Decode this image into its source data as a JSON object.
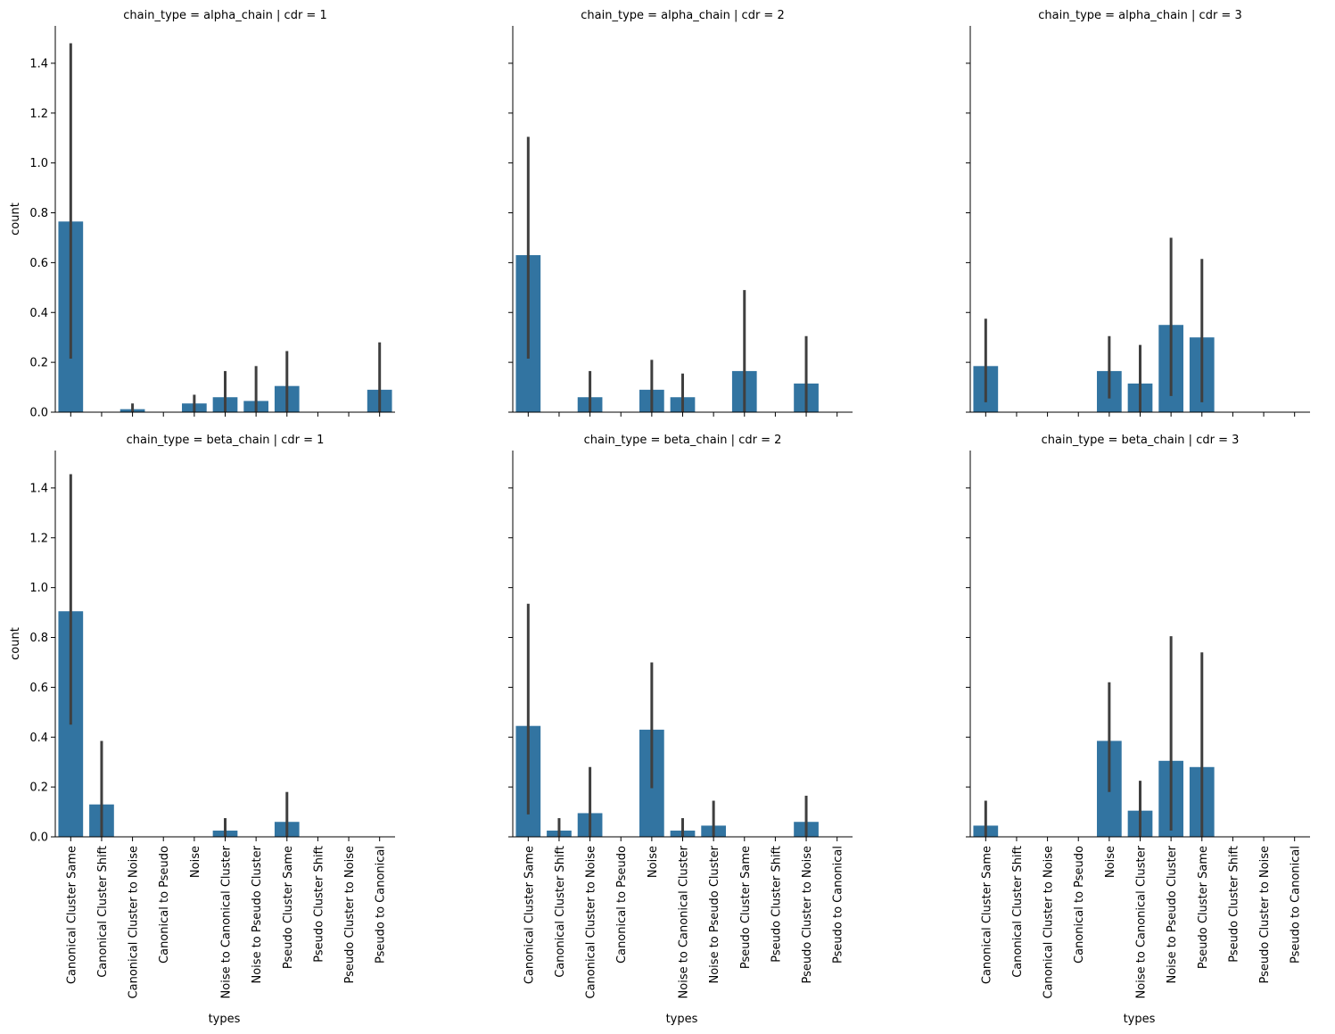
{
  "chart_data": {
    "type": "bar",
    "layout": "facet-grid",
    "xlabel": "types",
    "ylabel": "count",
    "ylim": [
      0,
      1.55
    ],
    "yticks": [
      "0.0",
      "0.2",
      "0.4",
      "0.6",
      "0.8",
      "1.0",
      "1.2",
      "1.4"
    ],
    "categories": [
      "Canonical Cluster Same",
      "Canonical Cluster Shift",
      "Canonical Cluster to Noise",
      "Canonical to Pseudo",
      "Noise",
      "Noise to Canonical Cluster",
      "Noise to Pseudo Cluster",
      "Pseudo Cluster Same",
      "Pseudo Cluster Shift",
      "Pseudo Cluster to Noise",
      "Pseudo to Canonical"
    ],
    "panels": [
      {
        "title": "chain_type = alpha_chain | cdr = 1",
        "values": [
          0.765,
          0,
          0.012,
          0,
          0.035,
          0.06,
          0.045,
          0.105,
          0,
          0,
          0.09
        ],
        "err_low": [
          0.215,
          0,
          0,
          0,
          0,
          0,
          0,
          0,
          0,
          0,
          0
        ],
        "err_high": [
          1.48,
          0,
          0.035,
          0,
          0.07,
          0.165,
          0.185,
          0.245,
          0,
          0,
          0.28
        ]
      },
      {
        "title": "chain_type = alpha_chain | cdr = 2",
        "values": [
          0.63,
          0,
          0.06,
          0,
          0.09,
          0.06,
          0,
          0.165,
          0,
          0.115,
          0
        ],
        "err_low": [
          0.215,
          0,
          0,
          0,
          0,
          0,
          0,
          0,
          0,
          0,
          0
        ],
        "err_high": [
          1.105,
          0,
          0.165,
          0,
          0.21,
          0.155,
          0,
          0.49,
          0,
          0.305,
          0
        ]
      },
      {
        "title": "chain_type = alpha_chain | cdr = 3",
        "values": [
          0.185,
          0,
          0,
          0,
          0.165,
          0.115,
          0.35,
          0.3,
          0,
          0,
          0
        ],
        "err_low": [
          0.04,
          0,
          0,
          0,
          0.055,
          0,
          0.065,
          0.04,
          0,
          0,
          0
        ],
        "err_high": [
          0.375,
          0,
          0,
          0,
          0.305,
          0.27,
          0.7,
          0.615,
          0,
          0,
          0
        ]
      },
      {
        "title": "chain_type = beta_chain | cdr = 1",
        "values": [
          0.905,
          0.13,
          0,
          0,
          0,
          0.025,
          0,
          0.06,
          0,
          0,
          0
        ],
        "err_low": [
          0.45,
          0,
          0,
          0,
          0,
          0,
          0,
          0,
          0,
          0,
          0
        ],
        "err_high": [
          1.455,
          0.385,
          0,
          0,
          0,
          0.075,
          0,
          0.18,
          0,
          0,
          0
        ]
      },
      {
        "title": "chain_type = beta_chain | cdr = 2",
        "values": [
          0.445,
          0.025,
          0.095,
          0,
          0.43,
          0.025,
          0.045,
          0,
          0,
          0.06,
          0
        ],
        "err_low": [
          0.09,
          0,
          0,
          0,
          0.195,
          0,
          0,
          0,
          0,
          0,
          0
        ],
        "err_high": [
          0.935,
          0.075,
          0.28,
          0,
          0.7,
          0.075,
          0.145,
          0,
          0,
          0.165,
          0
        ]
      },
      {
        "title": "chain_type = beta_chain | cdr = 3",
        "values": [
          0.045,
          0,
          0,
          0,
          0.385,
          0.105,
          0.305,
          0.28,
          0,
          0,
          0
        ],
        "err_low": [
          0,
          0,
          0,
          0,
          0.18,
          0,
          0.025,
          0,
          0,
          0,
          0
        ],
        "err_high": [
          0.145,
          0,
          0,
          0,
          0.62,
          0.225,
          0.805,
          0.74,
          0,
          0,
          0
        ]
      }
    ]
  },
  "colors": {
    "bar": "#3274a1",
    "errorbar": "#3f3f3f",
    "axis": "#000000"
  }
}
